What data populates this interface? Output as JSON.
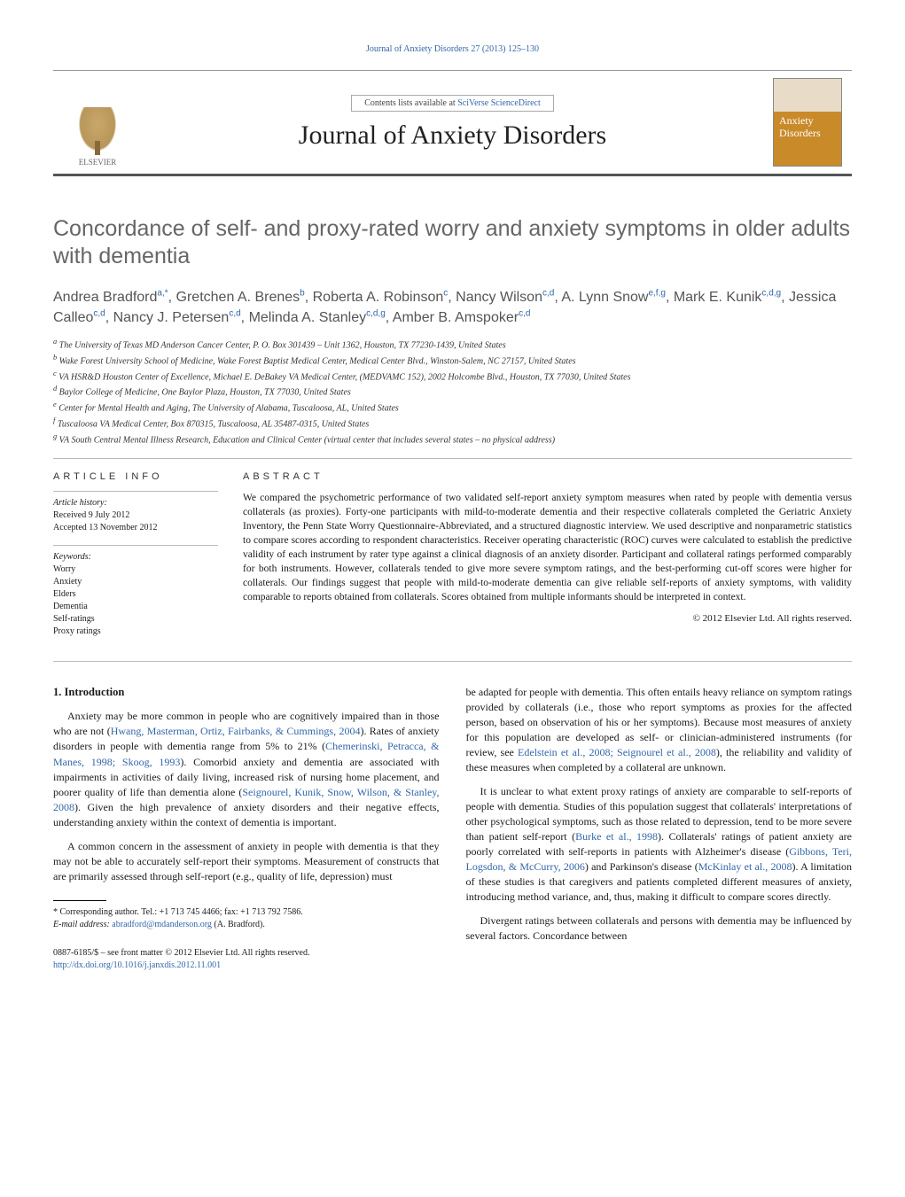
{
  "running_header": "Journal of Anxiety Disorders 27 (2013) 125–130",
  "masthead": {
    "contents_prefix": "Contents lists available at ",
    "contents_link": "SciVerse ScienceDirect",
    "journal_name": "Journal of Anxiety Disorders",
    "publisher_label": "ELSEVIER",
    "cover_word1": "Anxiety",
    "cover_word2": "Disorders"
  },
  "article": {
    "title": "Concordance of self- and proxy-rated worry and anxiety symptoms in older adults with dementia",
    "authors_html": "Andrea Bradford<sup>a,*</sup>, Gretchen A. Brenes<sup>b</sup>, Roberta A. Robinson<sup>c</sup>, Nancy Wilson<sup>c,d</sup>, A. Lynn Snow<sup>e,f,g</sup>, Mark E. Kunik<sup>c,d,g</sup>, Jessica Calleo<sup>c,d</sup>, Nancy J. Petersen<sup>c,d</sup>, Melinda A. Stanley<sup>c,d,g</sup>, Amber B. Amspoker<sup>c,d</sup>"
  },
  "affiliations": [
    "a The University of Texas MD Anderson Cancer Center, P. O. Box 301439 – Unit 1362, Houston, TX 77230-1439, United States",
    "b Wake Forest University School of Medicine, Wake Forest Baptist Medical Center, Medical Center Blvd., Winston-Salem, NC 27157, United States",
    "c VA HSR&D Houston Center of Excellence, Michael E. DeBakey VA Medical Center, (MEDVAMC 152), 2002 Holcombe Blvd., Houston, TX 77030, United States",
    "d Baylor College of Medicine, One Baylor Plaza, Houston, TX 77030, United States",
    "e Center for Mental Health and Aging, The University of Alabama, Tuscaloosa, AL, United States",
    "f Tuscaloosa VA Medical Center, Box 870315, Tuscaloosa, AL 35487-0315, United States",
    "g VA South Central Mental Illness Research, Education and Clinical Center (virtual center that includes several states – no physical address)"
  ],
  "info": {
    "label": "ARTICLE INFO",
    "history_label": "Article history:",
    "received": "Received 9 July 2012",
    "accepted": "Accepted 13 November 2012",
    "keywords_label": "Keywords:",
    "keywords": [
      "Worry",
      "Anxiety",
      "Elders",
      "Dementia",
      "Self-ratings",
      "Proxy ratings"
    ]
  },
  "abstract": {
    "label": "ABSTRACT",
    "text": "We compared the psychometric performance of two validated self-report anxiety symptom measures when rated by people with dementia versus collaterals (as proxies). Forty-one participants with mild-to-moderate dementia and their respective collaterals completed the Geriatric Anxiety Inventory, the Penn State Worry Questionnaire-Abbreviated, and a structured diagnostic interview. We used descriptive and nonparametric statistics to compare scores according to respondent characteristics. Receiver operating characteristic (ROC) curves were calculated to establish the predictive validity of each instrument by rater type against a clinical diagnosis of an anxiety disorder. Participant and collateral ratings performed comparably for both instruments. However, collaterals tended to give more severe symptom ratings, and the best-performing cut-off scores were higher for collaterals. Our findings suggest that people with mild-to-moderate dementia can give reliable self-reports of anxiety symptoms, with validity comparable to reports obtained from collaterals. Scores obtained from multiple informants should be interpreted in context.",
    "copyright": "© 2012 Elsevier Ltd. All rights reserved."
  },
  "body": {
    "section_heading": "1. Introduction",
    "left": {
      "p1_a": "Anxiety may be more common in people who are cognitively impaired than in those who are not (",
      "p1_c1": "Hwang, Masterman, Ortiz, Fairbanks, & Cummings, 2004",
      "p1_b": "). Rates of anxiety disorders in people with dementia range from 5% to 21% (",
      "p1_c2": "Chemerinski, Petracca, & Manes, 1998; Skoog, 1993",
      "p1_c": "). Comorbid anxiety and dementia are associated with impairments in activities of daily living, increased risk of nursing home placement, and poorer quality of life than dementia alone (",
      "p1_c3": "Seignourel, Kunik, Snow, Wilson, & Stanley, 2008",
      "p1_d": "). Given the high prevalence of anxiety disorders and their negative effects, understanding anxiety within the context of dementia is important.",
      "p2": "A common concern in the assessment of anxiety in people with dementia is that they may not be able to accurately self-report their symptoms. Measurement of constructs that are primarily assessed through self-report (e.g., quality of life, depression) must"
    },
    "right": {
      "p1_a": "be adapted for people with dementia. This often entails heavy reliance on symptom ratings provided by collaterals (i.e., those who report symptoms as proxies for the affected person, based on observation of his or her symptoms). Because most measures of anxiety for this population are developed as self- or clinician-administered instruments (for review, see ",
      "p1_c1": "Edelstein et al., 2008; Seignourel et al., 2008",
      "p1_b": "), the reliability and validity of these measures when completed by a collateral are unknown.",
      "p2_a": "It is unclear to what extent proxy ratings of anxiety are comparable to self-reports of people with dementia. Studies of this population suggest that collaterals' interpretations of other psychological symptoms, such as those related to depression, tend to be more severe than patient self-report (",
      "p2_c1": "Burke et al., 1998",
      "p2_b": "). Collaterals' ratings of patient anxiety are poorly correlated with self-reports in patients with Alzheimer's disease (",
      "p2_c2": "Gibbons, Teri, Logsdon, & McCurry, 2006",
      "p2_c": ") and Parkinson's disease (",
      "p2_c3": "McKinlay et al., 2008",
      "p2_d": "). A limitation of these studies is that caregivers and patients completed different measures of anxiety, introducing method variance, and, thus, making it difficult to compare scores directly.",
      "p3": "Divergent ratings between collaterals and persons with dementia may be influenced by several factors. Concordance between"
    }
  },
  "footnote": {
    "corr": "* Corresponding author. Tel.: +1 713 745 4466; fax: +1 713 792 7586.",
    "email_label": "E-mail address: ",
    "email": "abradford@mdanderson.org",
    "email_suffix": " (A. Bradford)."
  },
  "bottom": {
    "line1": "0887-6185/$ – see front matter © 2012 Elsevier Ltd. All rights reserved.",
    "doi": "http://dx.doi.org/10.1016/j.janxdis.2012.11.001"
  }
}
